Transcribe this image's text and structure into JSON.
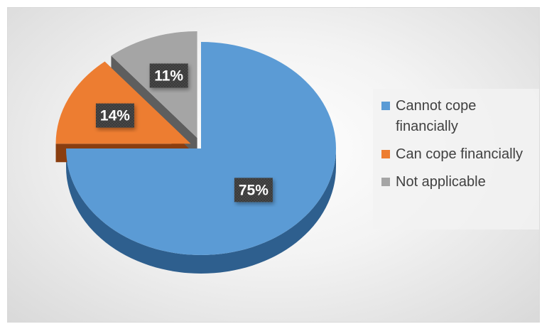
{
  "chart_data": {
    "type": "pie",
    "title": "",
    "slices": [
      {
        "label": "Cannot cope financially",
        "value": 75,
        "display": "75%",
        "color": "#5b9bd5",
        "side_color": "#2e5f8e",
        "exploded": false
      },
      {
        "label": "Can cope financially",
        "value": 14,
        "display": "14%",
        "color": "#ed7d31",
        "side_color": "#8a3e10",
        "exploded": true
      },
      {
        "label": "Not applicable",
        "value": 11,
        "display": "11%",
        "color": "#a5a5a5",
        "side_color": "#5e5e5e",
        "exploded": true
      }
    ],
    "legend_position": "right",
    "style": "3d-exploded"
  }
}
